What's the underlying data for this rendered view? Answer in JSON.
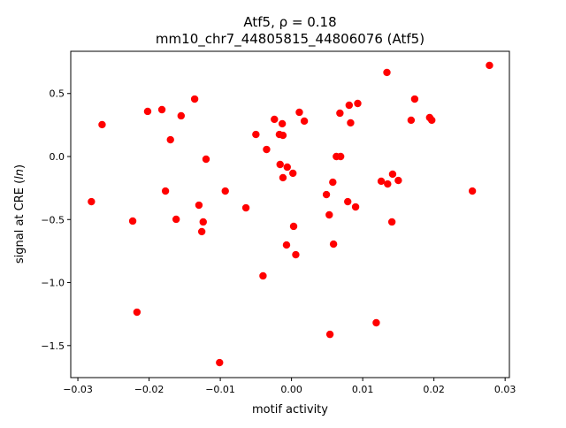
{
  "chart_data": {
    "type": "scatter",
    "title": "Atf5, ρ = 0.18",
    "subtitle": "mm10_chr7_44805815_44806076 (Atf5)",
    "xlabel": "motif activity",
    "ylabel_prefix": "signal at CRE (",
    "ylabel_italic": "ln",
    "ylabel_suffix": ")",
    "xlim": [
      -0.031,
      0.0306
    ],
    "ylim": [
      -1.754,
      0.835
    ],
    "xticks": [
      -0.03,
      -0.02,
      -0.01,
      0.0,
      0.01,
      0.02,
      0.03
    ],
    "xtick_labels": [
      "−0.03",
      "−0.02",
      "−0.01",
      "0.00",
      "0.01",
      "0.02",
      "0.03"
    ],
    "yticks": [
      0.5,
      0.0,
      -0.5,
      -1.0,
      -1.5
    ],
    "ytick_labels": [
      "0.5",
      "0.0",
      "−0.5",
      "−1.0",
      "−1.5"
    ],
    "grid": false,
    "point_color": "#ff0000",
    "x": [
      -0.0281,
      -0.0266,
      -0.0223,
      -0.0217,
      -0.0202,
      -0.0182,
      -0.0177,
      -0.017,
      -0.0162,
      -0.0155,
      -0.0136,
      -0.013,
      -0.0126,
      -0.0124,
      -0.012,
      -0.0101,
      -0.0093,
      -0.0064,
      -0.005,
      -0.004,
      -0.0035,
      -0.0024,
      -0.0017,
      -0.0016,
      -0.0013,
      -0.0012,
      -0.0012,
      -0.0007,
      -0.0006,
      0.0002,
      0.0003,
      0.0006,
      0.0011,
      0.0018,
      0.0049,
      0.0053,
      0.0054,
      0.0058,
      0.0059,
      0.0063,
      0.0069,
      0.0068,
      0.0079,
      0.0081,
      0.0083,
      0.009,
      0.0093,
      0.0119,
      0.0126,
      0.0134,
      0.0135,
      0.0141,
      0.0142,
      0.015,
      0.0168,
      0.0173,
      0.0194,
      0.0197,
      0.0254,
      0.0278
    ],
    "y": [
      -0.358,
      0.253,
      -0.512,
      -1.235,
      0.358,
      0.372,
      -0.274,
      0.133,
      -0.498,
      0.323,
      0.456,
      -0.386,
      -0.596,
      -0.519,
      -0.021,
      -1.635,
      -0.274,
      -0.407,
      0.175,
      -0.947,
      0.056,
      0.295,
      0.175,
      -0.063,
      0.26,
      0.168,
      -0.168,
      -0.702,
      -0.084,
      -0.133,
      -0.554,
      -0.779,
      0.351,
      0.281,
      -0.302,
      -0.463,
      -1.411,
      -0.204,
      -0.695,
      0.0,
      0.0,
      0.344,
      -0.358,
      0.407,
      0.267,
      -0.4,
      0.421,
      -1.319,
      -0.196,
      0.667,
      -0.218,
      -0.519,
      -0.14,
      -0.19,
      0.288,
      0.456,
      0.309,
      0.288,
      -0.274,
      0.723
    ]
  }
}
